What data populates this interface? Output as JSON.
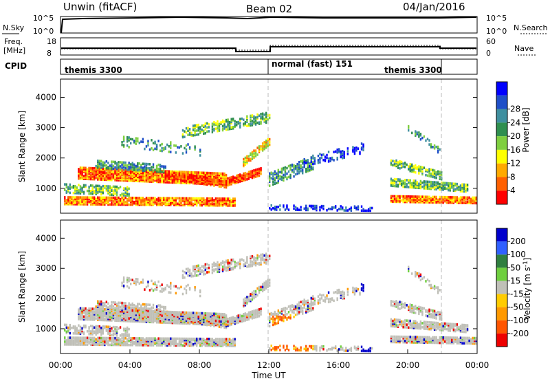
{
  "header": {
    "station": "Unwin (fitACF)",
    "beam": "Beam 02",
    "date": "04/Jan/2016"
  },
  "noise_panel": {
    "left_label": "N.Sky",
    "right_label": "N.Search",
    "ticks": [
      "10^5",
      "10^0"
    ]
  },
  "freq_panel": {
    "left_label_top": "Freq.",
    "left_label_unit": "[MHz]",
    "left_ticks": [
      "18",
      "8"
    ],
    "right_label": "Nave",
    "right_ticks": [
      "60",
      "0"
    ]
  },
  "cpid_panel": {
    "label": "CPID",
    "segments": [
      "themis 3300",
      "normal (fast) 151",
      "themis 3300"
    ]
  },
  "chart_data": [
    {
      "type": "heatmap",
      "name": "power",
      "ylabel": "Slant Range [km]",
      "xlabel": "",
      "ylim": [
        180,
        4600
      ],
      "y_ticks": [
        "1000",
        "2000",
        "3000",
        "4000"
      ],
      "colorbar": {
        "label": "Power [dB]",
        "ticks": [
          "4",
          "8",
          "12",
          "16",
          "20",
          "24",
          "28"
        ],
        "colors": [
          "#0000ff",
          "#1f4fc8",
          "#3f8f9f",
          "#2f8f4f",
          "#7fcf3f",
          "#ffff00",
          "#ffaa00",
          "#ff6000",
          "#ff0000"
        ]
      }
    },
    {
      "type": "heatmap",
      "name": "velocity",
      "ylabel": "Slant Range [km]",
      "xlabel": "Time UT",
      "ylim": [
        180,
        4600
      ],
      "y_ticks": [
        "1000",
        "2000",
        "3000",
        "4000"
      ],
      "x_ticks": [
        "00:00",
        "04:00",
        "08:00",
        "12:00",
        "16:00",
        "20:00",
        "00:00"
      ],
      "colorbar": {
        "label": "Velocity [m s",
        "label_exp": "-1",
        "label_close": "]",
        "ticks": [
          "200",
          "100",
          "50",
          "15",
          "-15",
          "-50",
          "-100",
          "-200"
        ],
        "colors": [
          "#0000cc",
          "#3060ff",
          "#2f7f3f",
          "#6fcf3f",
          "#c0c0b8",
          "#ffcc00",
          "#ff9900",
          "#ff5500",
          "#ee0000"
        ]
      }
    }
  ]
}
